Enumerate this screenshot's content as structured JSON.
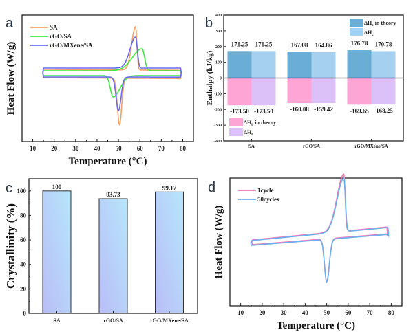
{
  "chart_data": [
    {
      "panel": "a",
      "type": "line",
      "title": "",
      "xlabel": "Temperature (°C)",
      "ylabel": "Heat Flow (W/g)",
      "xlim": [
        5,
        85
      ],
      "xticks": [
        10,
        20,
        30,
        40,
        50,
        60,
        70,
        80
      ],
      "grid": false,
      "legend_position": "top-left",
      "series": [
        {
          "name": "SA",
          "color": "#f4a063",
          "melting_peak_c": 58,
          "crystallization_peak_c": 50.5,
          "melting_peak_rel": 1.0,
          "crystallization_peak_rel": -1.0
        },
        {
          "name": "rGO/SA",
          "color": "#3ee83e",
          "melting_peak_c": 61,
          "crystallization_peak_c": 47.5,
          "melting_peak_rel": 0.5,
          "crystallization_peak_rel": -0.45
        },
        {
          "name": "rGO/MXene/SA",
          "color": "#6a6cf0",
          "melting_peak_c": 58,
          "crystallization_peak_c": 50,
          "melting_peak_rel": 0.76,
          "crystallization_peak_rel": -0.8
        }
      ]
    },
    {
      "panel": "b",
      "type": "bar",
      "title": "",
      "xlabel": "",
      "ylabel": "Enthalpy (kJ/kg)",
      "ylim": [
        -400,
        400
      ],
      "yticks": [
        -400,
        -300,
        -200,
        -100,
        0,
        100,
        200,
        300,
        400
      ],
      "categories": [
        "SA",
        "rGO/SA",
        "rGO/MXene/SA"
      ],
      "grid": false,
      "series": [
        {
          "name": "ΔHc in theory",
          "label_main": "ΔH",
          "label_sub": "c",
          "label_suffix": " in theory",
          "color": "#6aaed6",
          "values": [
            171.25,
            167.08,
            176.78
          ],
          "labels": [
            "171.25",
            "167.08",
            "176.78"
          ]
        },
        {
          "name": "ΔHc",
          "label_main": "ΔH",
          "label_sub": "c",
          "label_suffix": "",
          "color": "#a6d0ef",
          "values": [
            171.25,
            164.86,
            170.78
          ],
          "labels": [
            "171.25",
            "164.86",
            "170.78"
          ]
        },
        {
          "name": "ΔHh in theroy",
          "label_main": "ΔH",
          "label_sub": "h",
          "label_suffix": " in theroy",
          "color": "#fda6d6",
          "values": [
            -173.5,
            -160.08,
            -169.65
          ],
          "labels": [
            "-173.50",
            "-160.08",
            "-169.65"
          ]
        },
        {
          "name": "ΔHh",
          "label_main": "ΔH",
          "label_sub": "h",
          "label_suffix": "",
          "color": "#dcc0f8",
          "values": [
            -173.5,
            -159.42,
            -168.25
          ],
          "labels": [
            "-173.50",
            "-159.42",
            "-168.25"
          ]
        }
      ],
      "legend_positions": [
        "top-right",
        "bottom-left"
      ]
    },
    {
      "panel": "c",
      "type": "bar",
      "title": "",
      "xlabel": "",
      "ylabel": "Crystallinity (%)",
      "ylim": [
        0,
        110
      ],
      "yticks": [
        0,
        20,
        40,
        60,
        80,
        100
      ],
      "categories": [
        "SA",
        "rGO/SA",
        "rGO/MXene/SA"
      ],
      "values": [
        100,
        93.73,
        99.17
      ],
      "labels": [
        "100",
        "93.73",
        "99.17"
      ],
      "bar_gradient": [
        "#b9bdf7",
        "#b6e6fb"
      ],
      "grid": false
    },
    {
      "panel": "d",
      "type": "line",
      "title": "",
      "xlabel": "Temperature (°C)",
      "ylabel": "Heat Flow (W/g)",
      "xlim": [
        5,
        85
      ],
      "xticks": [
        10,
        20,
        30,
        40,
        50,
        60,
        70,
        80
      ],
      "grid": false,
      "legend_position": "top-left",
      "series": [
        {
          "name": "1cycle",
          "color": "#f07ab6",
          "melting_peak_c": 58,
          "crystallization_peak_c": 50
        },
        {
          "name": "50cycles",
          "color": "#6ab0f0",
          "melting_peak_c": 58,
          "crystallization_peak_c": 50
        }
      ]
    }
  ],
  "panel_labels": [
    "a",
    "b",
    "c",
    "d"
  ]
}
